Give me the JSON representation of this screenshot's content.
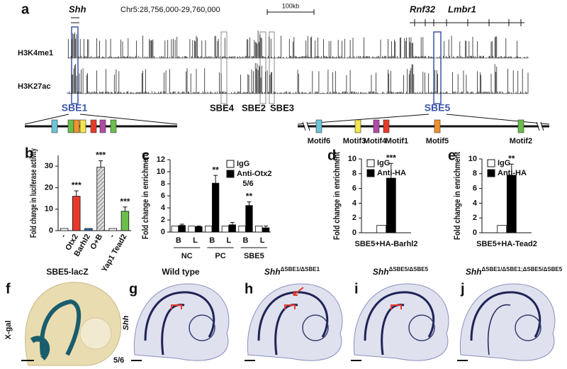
{
  "figure": {
    "panel_labels": [
      "a",
      "b",
      "c",
      "d",
      "e",
      "f",
      "g",
      "h",
      "i",
      "j"
    ],
    "genome": {
      "coordinates": "Chr5:28,756,000-29,760,000",
      "scale_bar": "100kb",
      "genes": [
        "Shh",
        "Rnf32",
        "Lmbr1"
      ],
      "tracks": [
        "H3K4me1",
        "H3K27ac"
      ],
      "enhancers": [
        "SBE1",
        "SBE4",
        "SBE2",
        "SBE3",
        "SBE5"
      ],
      "motifs": [
        "Motif6",
        "Motif3",
        "Motif4",
        "Motif1",
        "Motif5",
        "Motif2"
      ]
    },
    "images": [
      {
        "title": "SBE5-lacZ",
        "side_label": "X-gal",
        "ratio": "5/6"
      },
      {
        "title": "Wild type",
        "side_label": "Shh"
      },
      {
        "gene": "Shh",
        "genotype": "ΔSBE1/ΔSBE1"
      },
      {
        "gene": "Shh",
        "genotype": "ΔSBE5/ΔSBE5"
      },
      {
        "gene": "Shh",
        "genotype": "ΔSBE1/ΔSBE1;ΔSBE5/ΔSBE5"
      }
    ]
  },
  "chart_data": [
    {
      "type": "bar",
      "ylabel": "Fold change in luciferase activity",
      "categories": [
        "-",
        "Otx2",
        "Barhl2",
        "O+B",
        "-",
        "Yap1 Tead2"
      ],
      "values": [
        1,
        16,
        1,
        29.5,
        1,
        9
      ],
      "errors": [
        0,
        2.5,
        0,
        3,
        0,
        2
      ],
      "colors": [
        "#ffffff",
        "#e8392b",
        "#2a6fb5",
        "hatch",
        "#ffffff",
        "#6abf4b"
      ],
      "significance": [
        null,
        "***",
        null,
        "***",
        null,
        "***"
      ],
      "ylim": [
        0,
        35
      ],
      "yticks": [
        0,
        10,
        20,
        30
      ]
    },
    {
      "type": "bar",
      "ylabel": "Fold change in enrichment",
      "categories": [
        "B",
        "L",
        "B",
        "L",
        "B",
        "L"
      ],
      "groups": [
        "NC",
        "PC",
        "SBE5"
      ],
      "series": [
        {
          "name": "IgG",
          "color": "#ffffff",
          "values": [
            1,
            1,
            1,
            1,
            1,
            1
          ]
        },
        {
          "name": "Anti-Otx2",
          "color": "#000000",
          "values": [
            1.1,
            0.9,
            8.1,
            1.2,
            4.4,
            0.7
          ],
          "errors": [
            0.2,
            0.1,
            1.3,
            0.4,
            0.6,
            0.3
          ],
          "significance": [
            null,
            null,
            "**",
            null,
            "**",
            null
          ]
        }
      ],
      "annotation": "5/6",
      "legend": "upper right",
      "ylim": [
        0,
        12
      ],
      "yticks": [
        0,
        2,
        4,
        6,
        8,
        10,
        12
      ]
    },
    {
      "type": "bar",
      "ylabel": "Fold change in enrichment",
      "categories": [
        "SBE5+HA-Barhl2"
      ],
      "series": [
        {
          "name": "IgG",
          "color": "#ffffff",
          "values": [
            1
          ]
        },
        {
          "name": "Anti-HA",
          "color": "#000000",
          "values": [
            7.4
          ],
          "errors": [
            2
          ],
          "significance": [
            "***"
          ]
        }
      ],
      "legend": "upper right",
      "ylim": [
        0,
        10
      ],
      "yticks": [
        0,
        2,
        4,
        6,
        8,
        10
      ]
    },
    {
      "type": "bar",
      "ylabel": "Fold change in enrichment",
      "categories": [
        "SBE5+HA-Tead2"
      ],
      "series": [
        {
          "name": "IgG",
          "color": "#ffffff",
          "values": [
            1
          ]
        },
        {
          "name": "Anti-HA",
          "color": "#000000",
          "values": [
            7.8
          ],
          "errors": [
            1.5
          ],
          "significance": [
            "**"
          ]
        }
      ],
      "legend": "upper right",
      "ylim": [
        0,
        10
      ],
      "yticks": [
        0,
        2,
        4,
        6,
        8,
        10
      ]
    }
  ]
}
